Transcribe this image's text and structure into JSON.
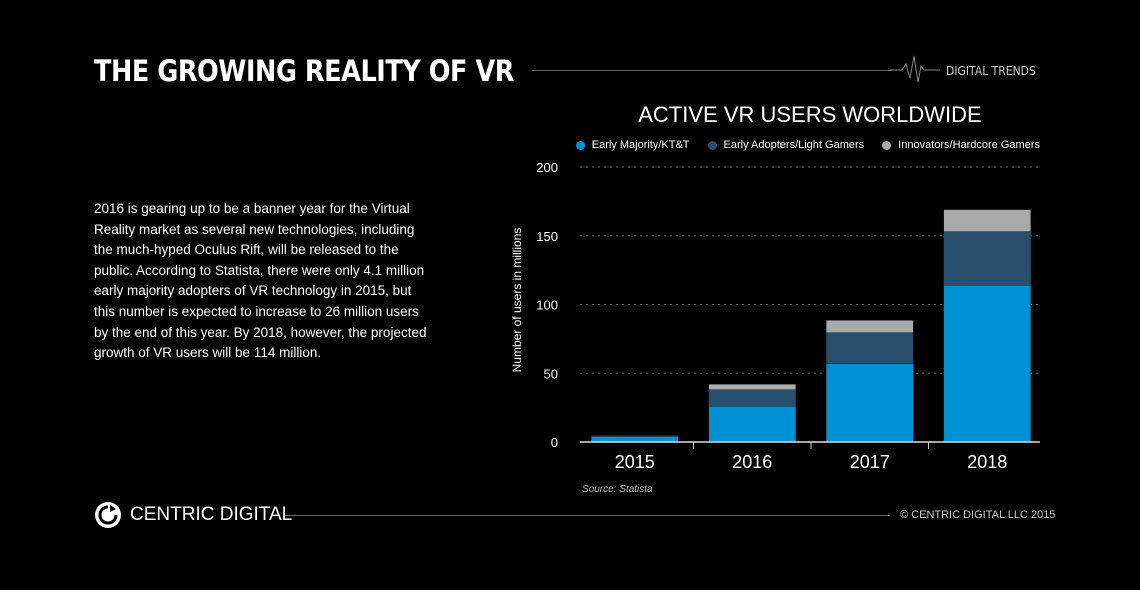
{
  "header": {
    "title": "THE GROWING REALITY OF VR",
    "tag": "DIGITAL TRENDS"
  },
  "body_text": "2016 is gearing up to be a banner year for the Virtual Reality market as several new technologies, including the much-hyped Oculus Rift, will be released to the public. According to Statista, there were only 4.1 million early majority adopters of VR technology in 2015, but this number is expected to increase to 26 million users by the end of this year. By 2018, however, the projected growth of VR users will be 114 million.",
  "chart_data": {
    "type": "bar",
    "stacked": true,
    "title": "ACTIVE VR USERS WORLDWIDE",
    "ylabel": "Number of users in millions",
    "xlabel": "",
    "categories": [
      "2015",
      "2016",
      "2017",
      "2018"
    ],
    "ylim": [
      0,
      200
    ],
    "yticks": [
      0,
      50,
      100,
      150,
      200
    ],
    "grid": true,
    "legend": "top-right",
    "series": [
      {
        "name": "Early Majority/KT&T",
        "color": "#0091d5",
        "values": [
          4.1,
          26,
          57,
          114
        ]
      },
      {
        "name": "Early Adopters/Light Gamers",
        "color": "#2a4f6c",
        "values": [
          0.6,
          12,
          22.5,
          39
        ]
      },
      {
        "name": "Innovators/Hardcore Gamers",
        "color": "#aaaaaa",
        "values": [
          0,
          4,
          9,
          16
        ]
      }
    ]
  },
  "source": "Source:  Statista",
  "footer": {
    "logo_text": "CENTRIC DIGITAL",
    "copyright": "© CENTRIC DIGITAL LLC 2015"
  }
}
